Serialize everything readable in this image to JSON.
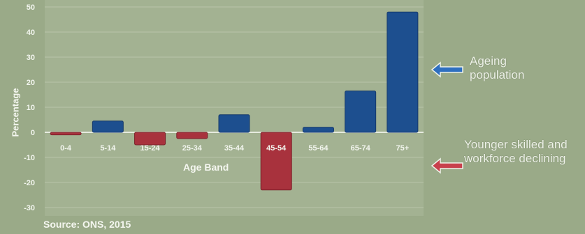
{
  "chart_data": {
    "type": "bar",
    "title": "",
    "xlabel": "Age Band",
    "ylabel": "Percentage",
    "ylim": [
      -30,
      50
    ],
    "yticks": [
      50,
      40,
      30,
      20,
      10,
      0,
      -10,
      -20,
      -30
    ],
    "grid": true,
    "categories": [
      "0-4",
      "5-14",
      "15-24",
      "25-34",
      "35-44",
      "45-54",
      "55-64",
      "65-74",
      "75+"
    ],
    "values": [
      -1,
      4.5,
      -5,
      -2.5,
      7,
      -23,
      2,
      16.5,
      48
    ],
    "colors": {
      "positive": "#1d4f8f",
      "negative": "#a8323d"
    }
  },
  "annotations": {
    "ageing": "Ageing population",
    "younger": "Younger skilled and workforce declining"
  },
  "source": "Source: ONS, 2015",
  "arrow_color": "#2e6fc0",
  "arrow_color_red": "#c8404c"
}
